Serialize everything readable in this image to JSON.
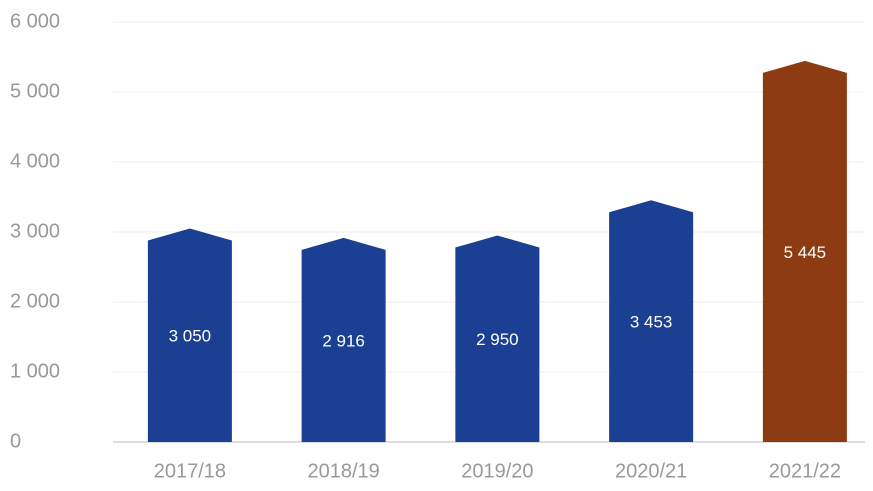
{
  "chart_data": {
    "type": "bar",
    "categories": [
      "2017/18",
      "2018/19",
      "2019/20",
      "2020/21",
      "2021/22"
    ],
    "values": [
      3050,
      2916,
      2950,
      3453,
      5445
    ],
    "value_labels": [
      "3 050",
      "2 916",
      "2 950",
      "3 453",
      "5 445"
    ],
    "colors": [
      "#1a3f93",
      "#1a3f93",
      "#1a3f93",
      "#1a3f93",
      "#8d3b12"
    ],
    "ylim": [
      0,
      6000
    ],
    "yticks": [
      0,
      {
        "value": 1000,
        "label": "1 000"
      },
      {
        "value": 2000,
        "label": "2 000"
      },
      {
        "value": 3000,
        "label": "3 000"
      },
      {
        "value": 4000,
        "label": "4 000"
      },
      {
        "value": 5000,
        "label": "5 000"
      },
      {
        "value": 6000,
        "label": "6 000"
      }
    ],
    "grid": true
  }
}
